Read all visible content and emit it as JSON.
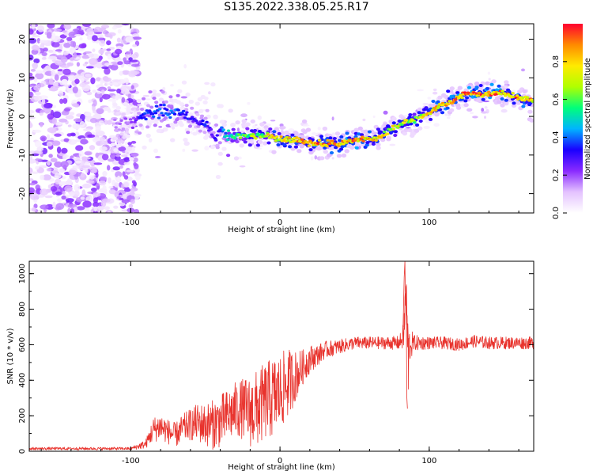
{
  "title": "S135.2022.338.05.25.R17",
  "chart_data": [
    {
      "type": "heatmap",
      "xlabel": "Height of straight line (km)",
      "ylabel": "Frequency (Hz)",
      "xlim": [
        -168,
        170
      ],
      "ylim": [
        -25,
        24
      ],
      "xticks": [
        -100,
        0,
        100
      ],
      "yticks": [
        -20,
        -10,
        0,
        10,
        20
      ],
      "grid": false,
      "colorbar": {
        "label": "Normalized spectral amplitude",
        "range": [
          0,
          1
        ],
        "ticks": [
          0.0,
          0.2,
          0.4,
          0.6,
          0.8
        ],
        "colormap": [
          "#ffffff",
          "#e4c2ff",
          "#8a2bff",
          "#1a00ff",
          "#00b4ff",
          "#00ff7a",
          "#b0ff00",
          "#ffea00",
          "#ff8a00",
          "#ff0030"
        ]
      },
      "noise_region_x": [
        -168,
        -95
      ],
      "ridge": {
        "x": [
          -112,
          -100,
          -92,
          -85,
          -78,
          -70,
          -62,
          -55,
          -48,
          -44,
          -40,
          -35,
          -30,
          -25,
          -20,
          -10,
          0,
          10,
          20,
          30,
          40,
          50,
          60,
          68,
          75,
          82,
          88,
          95,
          100,
          105,
          110,
          115,
          120,
          125,
          130,
          140,
          150,
          160,
          170
        ],
        "frequency": [
          -2,
          -2,
          0,
          1,
          2,
          1,
          0,
          -1,
          -2,
          -6,
          -4,
          -5,
          -5,
          -5,
          -5,
          -5,
          -6,
          -6,
          -7,
          -7,
          -7,
          -6,
          -6,
          -5,
          -3,
          -2,
          -1,
          0,
          1,
          2,
          3,
          4,
          5,
          6,
          6,
          6,
          6,
          5,
          4
        ],
        "amplitude": [
          0.15,
          0.2,
          0.35,
          0.4,
          0.4,
          0.4,
          0.35,
          0.3,
          0.35,
          0.3,
          0.35,
          0.5,
          0.6,
          0.6,
          0.65,
          0.75,
          0.8,
          0.85,
          0.9,
          0.9,
          0.9,
          0.9,
          0.85,
          0.8,
          0.75,
          0.75,
          0.7,
          0.75,
          0.8,
          0.85,
          0.85,
          0.9,
          0.9,
          0.95,
          0.95,
          0.95,
          0.9,
          0.9,
          0.85
        ]
      }
    },
    {
      "type": "line",
      "xlabel": "Height of straight line (km)",
      "ylabel": "SNR (10 * v/v)",
      "xlim": [
        -168,
        170
      ],
      "ylim": [
        0,
        1070
      ],
      "xticks": [
        -100,
        0,
        100
      ],
      "yticks": [
        0,
        200,
        400,
        600,
        800,
        1000
      ],
      "grid": false,
      "color": "#e8332d",
      "series": [
        {
          "x": [
            -168,
            -150,
            -130,
            -110,
            -100,
            -90,
            -85,
            -80,
            -75,
            -70,
            -65,
            -60,
            -55,
            -50,
            -45,
            -40,
            -35,
            -30,
            -25,
            -20,
            -15,
            -10,
            -5,
            0,
            5,
            10,
            15,
            20,
            25,
            30,
            40,
            50,
            60,
            70,
            80,
            83,
            84,
            85,
            86,
            87,
            90,
            100,
            110,
            120,
            130,
            140,
            150,
            160,
            170
          ],
          "values": [
            15,
            15,
            15,
            15,
            15,
            40,
            120,
            140,
            110,
            90,
            130,
            150,
            160,
            150,
            150,
            170,
            200,
            230,
            240,
            220,
            240,
            280,
            300,
            330,
            380,
            420,
            470,
            520,
            540,
            570,
            590,
            610,
            610,
            610,
            610,
            650,
            880,
            760,
            500,
            600,
            610,
            610,
            610,
            600,
            620,
            610,
            610,
            610,
            610
          ],
          "spread": [
            8,
            8,
            8,
            8,
            8,
            25,
            70,
            80,
            70,
            70,
            80,
            90,
            110,
            120,
            140,
            150,
            150,
            160,
            170,
            200,
            220,
            220,
            230,
            220,
            200,
            150,
            100,
            80,
            60,
            50,
            40,
            35,
            35,
            35,
            40,
            80,
            190,
            190,
            230,
            100,
            45,
            35,
            35,
            35,
            35,
            35,
            35,
            35,
            35
          ]
        }
      ]
    }
  ]
}
